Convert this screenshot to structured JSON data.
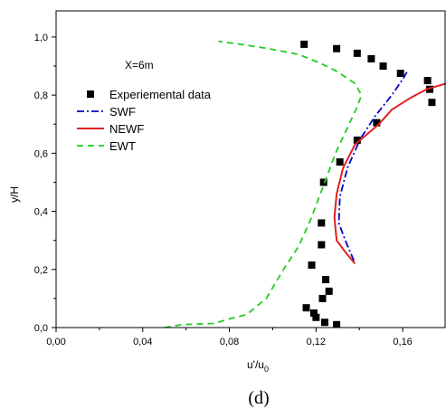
{
  "chart_data": {
    "type": "line",
    "xlabel": "u'/u",
    "xlabel_subscript": "0",
    "ylabel": "y/H",
    "xlim": [
      0.0,
      0.18
    ],
    "ylim": [
      0.0,
      1.09
    ],
    "x_ticks": [
      0.0,
      0.04,
      0.08,
      0.12,
      0.16
    ],
    "x_tick_labels": [
      "0,00",
      "0,04",
      "0,08",
      "0,12",
      "0,16"
    ],
    "y_ticks": [
      0.0,
      0.2,
      0.4,
      0.6,
      0.8,
      1.0
    ],
    "y_tick_labels": [
      "0,0",
      "0,2",
      "0,4",
      "0,6",
      "0,8",
      "1,0"
    ],
    "annotation": "X=6m",
    "caption": "(d)",
    "legend_position": "upper-left",
    "grid": false,
    "series": [
      {
        "name": "Experiemental data",
        "kind": "scatter",
        "marker": "square",
        "color": "#000000",
        "points": [
          [
            0.1145,
            0.975
          ],
          [
            0.1295,
            0.96
          ],
          [
            0.139,
            0.944
          ],
          [
            0.1455,
            0.925
          ],
          [
            0.151,
            0.9
          ],
          [
            0.159,
            0.875
          ],
          [
            0.1715,
            0.85
          ],
          [
            0.1725,
            0.82
          ],
          [
            0.1735,
            0.775
          ],
          [
            0.148,
            0.705
          ],
          [
            0.139,
            0.645
          ],
          [
            0.131,
            0.57
          ],
          [
            0.1235,
            0.5
          ],
          [
            0.1225,
            0.36
          ],
          [
            0.1225,
            0.285
          ],
          [
            0.118,
            0.215
          ],
          [
            0.1245,
            0.165
          ],
          [
            0.126,
            0.125
          ],
          [
            0.123,
            0.1
          ],
          [
            0.1155,
            0.068
          ],
          [
            0.119,
            0.05
          ],
          [
            0.12,
            0.035
          ],
          [
            0.124,
            0.018
          ],
          [
            0.1295,
            0.01
          ]
        ]
      },
      {
        "name": "SWF",
        "kind": "line",
        "dash": "dashdot",
        "color": "#0000cc",
        "points": [
          [
            0.1375,
            0.23
          ],
          [
            0.1335,
            0.3
          ],
          [
            0.1305,
            0.36
          ],
          [
            0.131,
            0.45
          ],
          [
            0.1345,
            0.55
          ],
          [
            0.1405,
            0.65
          ],
          [
            0.1475,
            0.73
          ],
          [
            0.155,
            0.8
          ],
          [
            0.1605,
            0.86
          ],
          [
            0.162,
            0.88
          ]
        ]
      },
      {
        "name": "NEWF",
        "kind": "line",
        "dash": "solid",
        "color": "#e02020",
        "points": [
          [
            0.138,
            0.22
          ],
          [
            0.1335,
            0.26
          ],
          [
            0.1295,
            0.3
          ],
          [
            0.1285,
            0.38
          ],
          [
            0.1295,
            0.46
          ],
          [
            0.1325,
            0.55
          ],
          [
            0.138,
            0.63
          ],
          [
            0.149,
            0.7
          ],
          [
            0.155,
            0.75
          ],
          [
            0.1635,
            0.79
          ],
          [
            0.171,
            0.82
          ],
          [
            0.18,
            0.84
          ]
        ]
      },
      {
        "name": "EWT",
        "kind": "line",
        "dash": "dashed",
        "color": "#22cc22",
        "points": [
          [
            0.05,
            0.0
          ],
          [
            0.058,
            0.01
          ],
          [
            0.065,
            0.012
          ],
          [
            0.073,
            0.014
          ],
          [
            0.08,
            0.03
          ],
          [
            0.088,
            0.045
          ],
          [
            0.097,
            0.1
          ],
          [
            0.105,
            0.2
          ],
          [
            0.112,
            0.28
          ],
          [
            0.118,
            0.38
          ],
          [
            0.124,
            0.5
          ],
          [
            0.129,
            0.6
          ],
          [
            0.134,
            0.68
          ],
          [
            0.139,
            0.76
          ],
          [
            0.141,
            0.8
          ],
          [
            0.138,
            0.84
          ],
          [
            0.13,
            0.88
          ],
          [
            0.122,
            0.91
          ],
          [
            0.112,
            0.94
          ],
          [
            0.098,
            0.96
          ],
          [
            0.085,
            0.975
          ],
          [
            0.075,
            0.985
          ]
        ]
      }
    ]
  }
}
